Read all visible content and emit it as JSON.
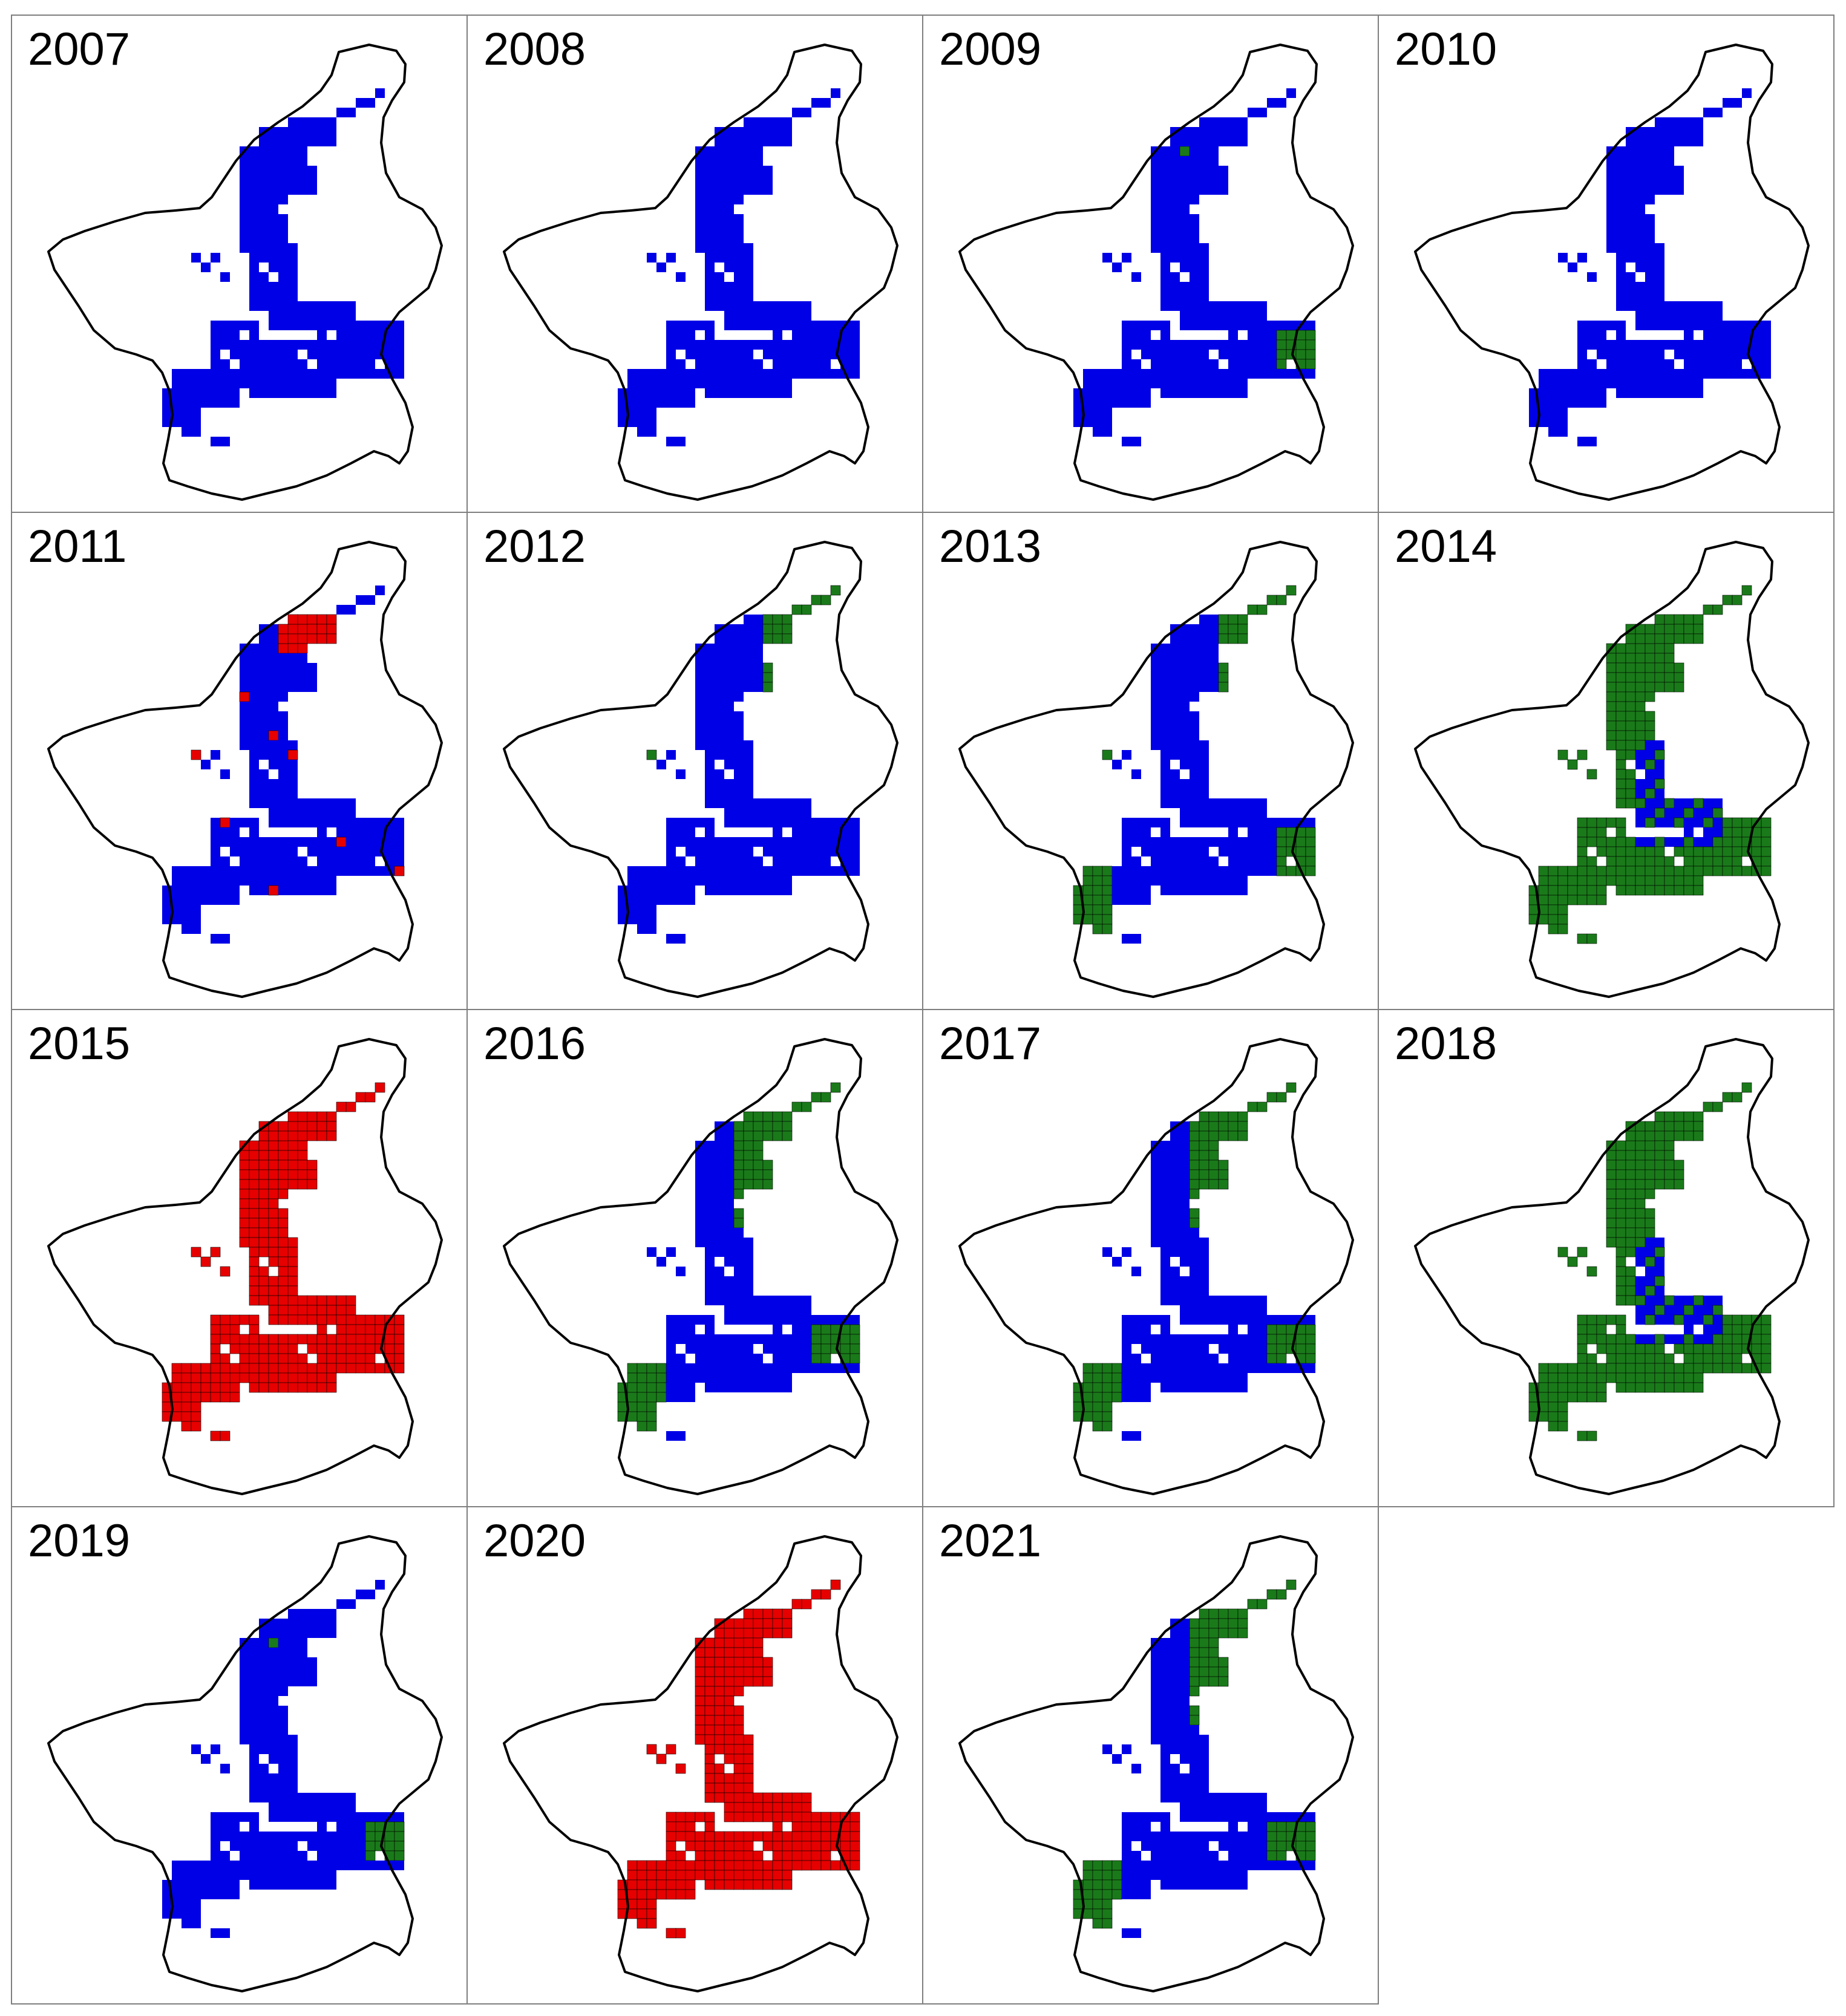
{
  "figure": {
    "colors": {
      "blue": "#0000e6",
      "red": "#e60000",
      "green": "#1a7a1a",
      "outline": "#000000",
      "frame": "#7f7f7f"
    },
    "panels": [
      {
        "year": "2007",
        "overlay": "blue"
      },
      {
        "year": "2008",
        "overlay": "blue"
      },
      {
        "year": "2009",
        "overlay": "blue-green-spot"
      },
      {
        "year": "2010",
        "overlay": "blue"
      },
      {
        "year": "2011",
        "overlay": "blue-red-top"
      },
      {
        "year": "2012",
        "overlay": "blue-green-right"
      },
      {
        "year": "2013",
        "overlay": "blue-green-edges"
      },
      {
        "year": "2014",
        "overlay": "green-dominant"
      },
      {
        "year": "2015",
        "overlay": "red-all"
      },
      {
        "year": "2016",
        "overlay": "blue-green-north"
      },
      {
        "year": "2017",
        "overlay": "blue-green-north"
      },
      {
        "year": "2018",
        "overlay": "green-dominant"
      },
      {
        "year": "2019",
        "overlay": "blue-green-spot"
      },
      {
        "year": "2020",
        "overlay": "red-all"
      },
      {
        "year": "2021",
        "overlay": "blue-green-north"
      }
    ]
  }
}
